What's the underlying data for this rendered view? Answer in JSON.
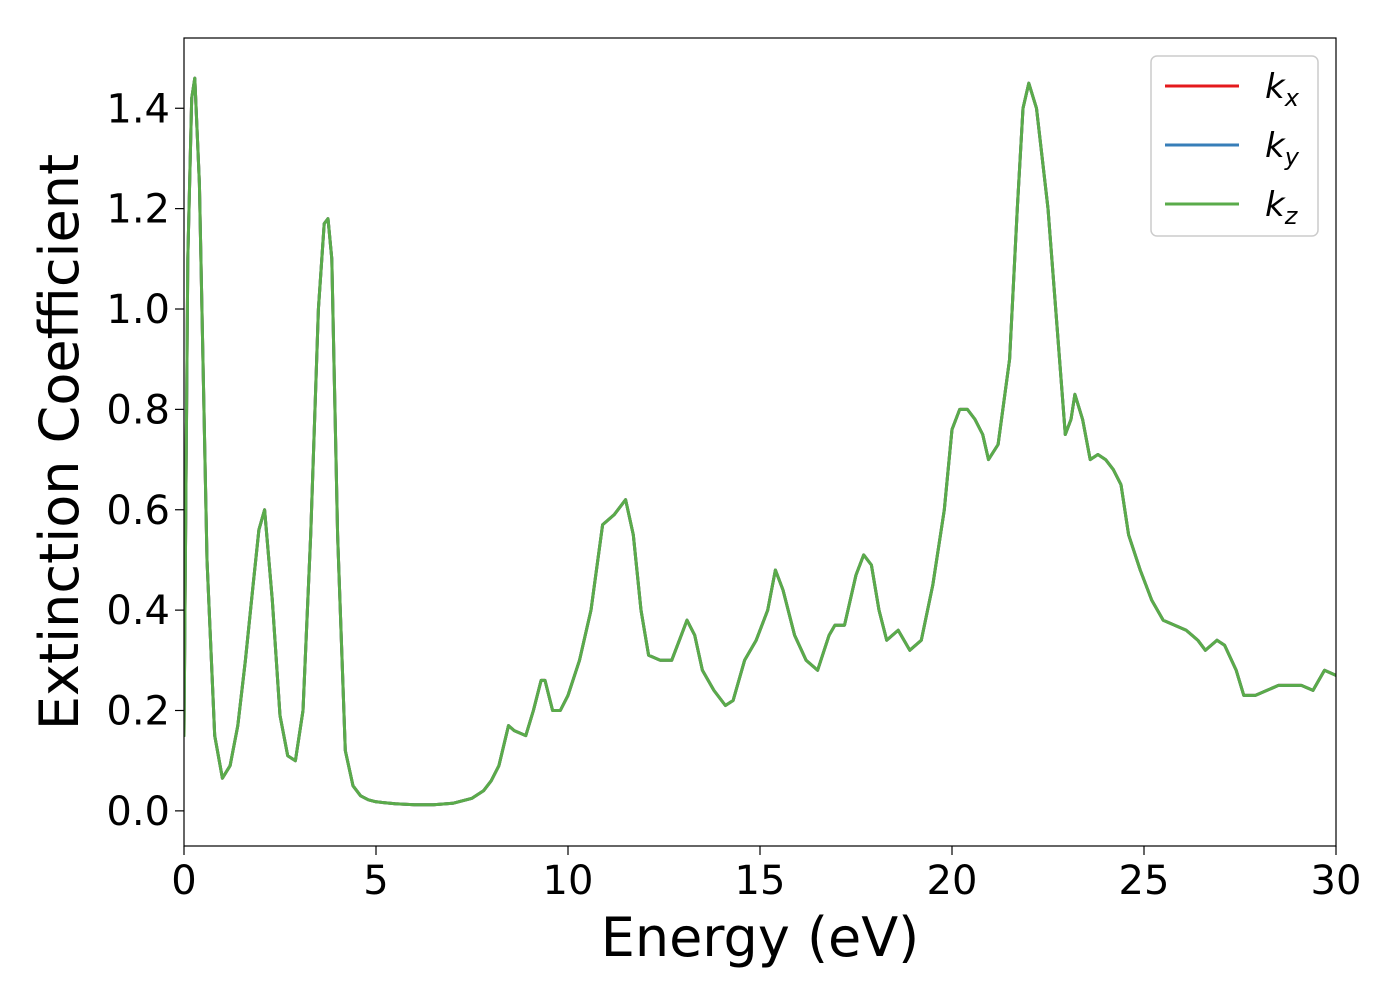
{
  "chart_data": {
    "type": "line",
    "title": "",
    "xlabel": "Energy (eV)",
    "ylabel": "Extinction Coefficient",
    "xlim": [
      0,
      30
    ],
    "ylim": [
      -0.07,
      1.54
    ],
    "xticks": [
      0,
      5,
      10,
      15,
      20,
      25,
      30
    ],
    "yticks": [
      0.0,
      0.2,
      0.4,
      0.6,
      0.8,
      1.0,
      1.2,
      1.4
    ],
    "ytick_labels": [
      "0.0",
      "0.2",
      "0.4",
      "0.6",
      "0.8",
      "1.0",
      "1.2",
      "1.4"
    ],
    "grid": false,
    "legend_position": "top-right",
    "x": [
      0,
      0.1,
      0.2,
      0.28,
      0.4,
      0.6,
      0.8,
      1.0,
      1.2,
      1.4,
      1.6,
      1.8,
      1.95,
      2.1,
      2.3,
      2.5,
      2.7,
      2.9,
      3.1,
      3.3,
      3.5,
      3.65,
      3.75,
      3.85,
      4.0,
      4.2,
      4.4,
      4.6,
      4.8,
      5.0,
      5.5,
      6.0,
      6.5,
      7.0,
      7.5,
      7.8,
      8.0,
      8.2,
      8.45,
      8.6,
      8.9,
      9.1,
      9.3,
      9.4,
      9.6,
      9.8,
      10.0,
      10.3,
      10.6,
      10.9,
      11.2,
      11.5,
      11.7,
      11.9,
      12.1,
      12.4,
      12.7,
      12.9,
      13.1,
      13.3,
      13.5,
      13.8,
      14.1,
      14.3,
      14.6,
      14.9,
      15.2,
      15.4,
      15.6,
      15.9,
      16.2,
      16.5,
      16.8,
      16.95,
      17.2,
      17.5,
      17.7,
      17.9,
      18.1,
      18.3,
      18.6,
      18.9,
      19.2,
      19.5,
      19.8,
      20.0,
      20.2,
      20.4,
      20.6,
      20.8,
      20.95,
      21.2,
      21.5,
      21.7,
      21.85,
      22.0,
      22.2,
      22.5,
      22.7,
      22.95,
      23.1,
      23.2,
      23.4,
      23.6,
      23.8,
      24.0,
      24.2,
      24.4,
      24.6,
      24.9,
      25.2,
      25.5,
      25.8,
      26.1,
      26.4,
      26.6,
      26.9,
      27.1,
      27.4,
      27.6,
      27.9,
      28.2,
      28.5,
      28.8,
      29.1,
      29.4,
      29.7,
      30.0
    ],
    "series": [
      {
        "name": "k_x",
        "color": "#e41a1c",
        "values": [
          0.15,
          1.1,
          1.42,
          1.46,
          1.25,
          0.5,
          0.15,
          0.065,
          0.09,
          0.17,
          0.3,
          0.45,
          0.56,
          0.6,
          0.42,
          0.19,
          0.11,
          0.1,
          0.2,
          0.55,
          1.0,
          1.17,
          1.18,
          1.1,
          0.55,
          0.12,
          0.05,
          0.03,
          0.022,
          0.018,
          0.014,
          0.012,
          0.012,
          0.015,
          0.025,
          0.04,
          0.06,
          0.09,
          0.17,
          0.16,
          0.15,
          0.2,
          0.26,
          0.26,
          0.2,
          0.2,
          0.23,
          0.3,
          0.4,
          0.57,
          0.59,
          0.62,
          0.55,
          0.4,
          0.31,
          0.3,
          0.3,
          0.34,
          0.38,
          0.35,
          0.28,
          0.24,
          0.21,
          0.22,
          0.3,
          0.34,
          0.4,
          0.48,
          0.44,
          0.35,
          0.3,
          0.28,
          0.35,
          0.37,
          0.37,
          0.47,
          0.51,
          0.49,
          0.4,
          0.34,
          0.36,
          0.32,
          0.34,
          0.45,
          0.6,
          0.76,
          0.8,
          0.8,
          0.78,
          0.75,
          0.7,
          0.73,
          0.9,
          1.2,
          1.4,
          1.45,
          1.4,
          1.2,
          1.0,
          0.75,
          0.78,
          0.83,
          0.78,
          0.7,
          0.71,
          0.7,
          0.68,
          0.65,
          0.55,
          0.48,
          0.42,
          0.38,
          0.37,
          0.36,
          0.34,
          0.32,
          0.34,
          0.33,
          0.28,
          0.23,
          0.23,
          0.24,
          0.25,
          0.25,
          0.25,
          0.24,
          0.28,
          0.27
        ]
      },
      {
        "name": "k_y",
        "color": "#377eb8",
        "values": [
          0.15,
          1.1,
          1.42,
          1.46,
          1.25,
          0.5,
          0.15,
          0.065,
          0.09,
          0.17,
          0.3,
          0.45,
          0.56,
          0.6,
          0.42,
          0.19,
          0.11,
          0.1,
          0.2,
          0.55,
          1.0,
          1.17,
          1.18,
          1.1,
          0.55,
          0.12,
          0.05,
          0.03,
          0.022,
          0.018,
          0.014,
          0.012,
          0.012,
          0.015,
          0.025,
          0.04,
          0.06,
          0.09,
          0.17,
          0.16,
          0.15,
          0.2,
          0.26,
          0.26,
          0.2,
          0.2,
          0.23,
          0.3,
          0.4,
          0.57,
          0.59,
          0.62,
          0.55,
          0.4,
          0.31,
          0.3,
          0.3,
          0.34,
          0.38,
          0.35,
          0.28,
          0.24,
          0.21,
          0.22,
          0.3,
          0.34,
          0.4,
          0.48,
          0.44,
          0.35,
          0.3,
          0.28,
          0.35,
          0.37,
          0.37,
          0.47,
          0.51,
          0.49,
          0.4,
          0.34,
          0.36,
          0.32,
          0.34,
          0.45,
          0.6,
          0.76,
          0.8,
          0.8,
          0.78,
          0.75,
          0.7,
          0.73,
          0.9,
          1.2,
          1.4,
          1.45,
          1.4,
          1.2,
          1.0,
          0.75,
          0.78,
          0.83,
          0.78,
          0.7,
          0.71,
          0.7,
          0.68,
          0.65,
          0.55,
          0.48,
          0.42,
          0.38,
          0.37,
          0.36,
          0.34,
          0.32,
          0.34,
          0.33,
          0.28,
          0.23,
          0.23,
          0.24,
          0.25,
          0.25,
          0.25,
          0.24,
          0.28,
          0.27
        ]
      },
      {
        "name": "k_z",
        "color": "#5aab4a",
        "values": [
          0.15,
          1.1,
          1.42,
          1.46,
          1.25,
          0.5,
          0.15,
          0.065,
          0.09,
          0.17,
          0.3,
          0.45,
          0.56,
          0.6,
          0.42,
          0.19,
          0.11,
          0.1,
          0.2,
          0.55,
          1.0,
          1.17,
          1.18,
          1.1,
          0.55,
          0.12,
          0.05,
          0.03,
          0.022,
          0.018,
          0.014,
          0.012,
          0.012,
          0.015,
          0.025,
          0.04,
          0.06,
          0.09,
          0.17,
          0.16,
          0.15,
          0.2,
          0.26,
          0.26,
          0.2,
          0.2,
          0.23,
          0.3,
          0.4,
          0.57,
          0.59,
          0.62,
          0.55,
          0.4,
          0.31,
          0.3,
          0.3,
          0.34,
          0.38,
          0.35,
          0.28,
          0.24,
          0.21,
          0.22,
          0.3,
          0.34,
          0.4,
          0.48,
          0.44,
          0.35,
          0.3,
          0.28,
          0.35,
          0.37,
          0.37,
          0.47,
          0.51,
          0.49,
          0.4,
          0.34,
          0.36,
          0.32,
          0.34,
          0.45,
          0.6,
          0.76,
          0.8,
          0.8,
          0.78,
          0.75,
          0.7,
          0.73,
          0.9,
          1.2,
          1.4,
          1.45,
          1.4,
          1.2,
          1.0,
          0.75,
          0.78,
          0.83,
          0.78,
          0.7,
          0.71,
          0.7,
          0.68,
          0.65,
          0.55,
          0.48,
          0.42,
          0.38,
          0.37,
          0.36,
          0.34,
          0.32,
          0.34,
          0.33,
          0.28,
          0.23,
          0.23,
          0.24,
          0.25,
          0.25,
          0.25,
          0.24,
          0.28,
          0.27
        ]
      }
    ],
    "legend": [
      {
        "base": "k",
        "sub": "x",
        "color": "#e41a1c"
      },
      {
        "base": "k",
        "sub": "y",
        "color": "#377eb8"
      },
      {
        "base": "k",
        "sub": "z",
        "color": "#5aab4a"
      }
    ]
  }
}
